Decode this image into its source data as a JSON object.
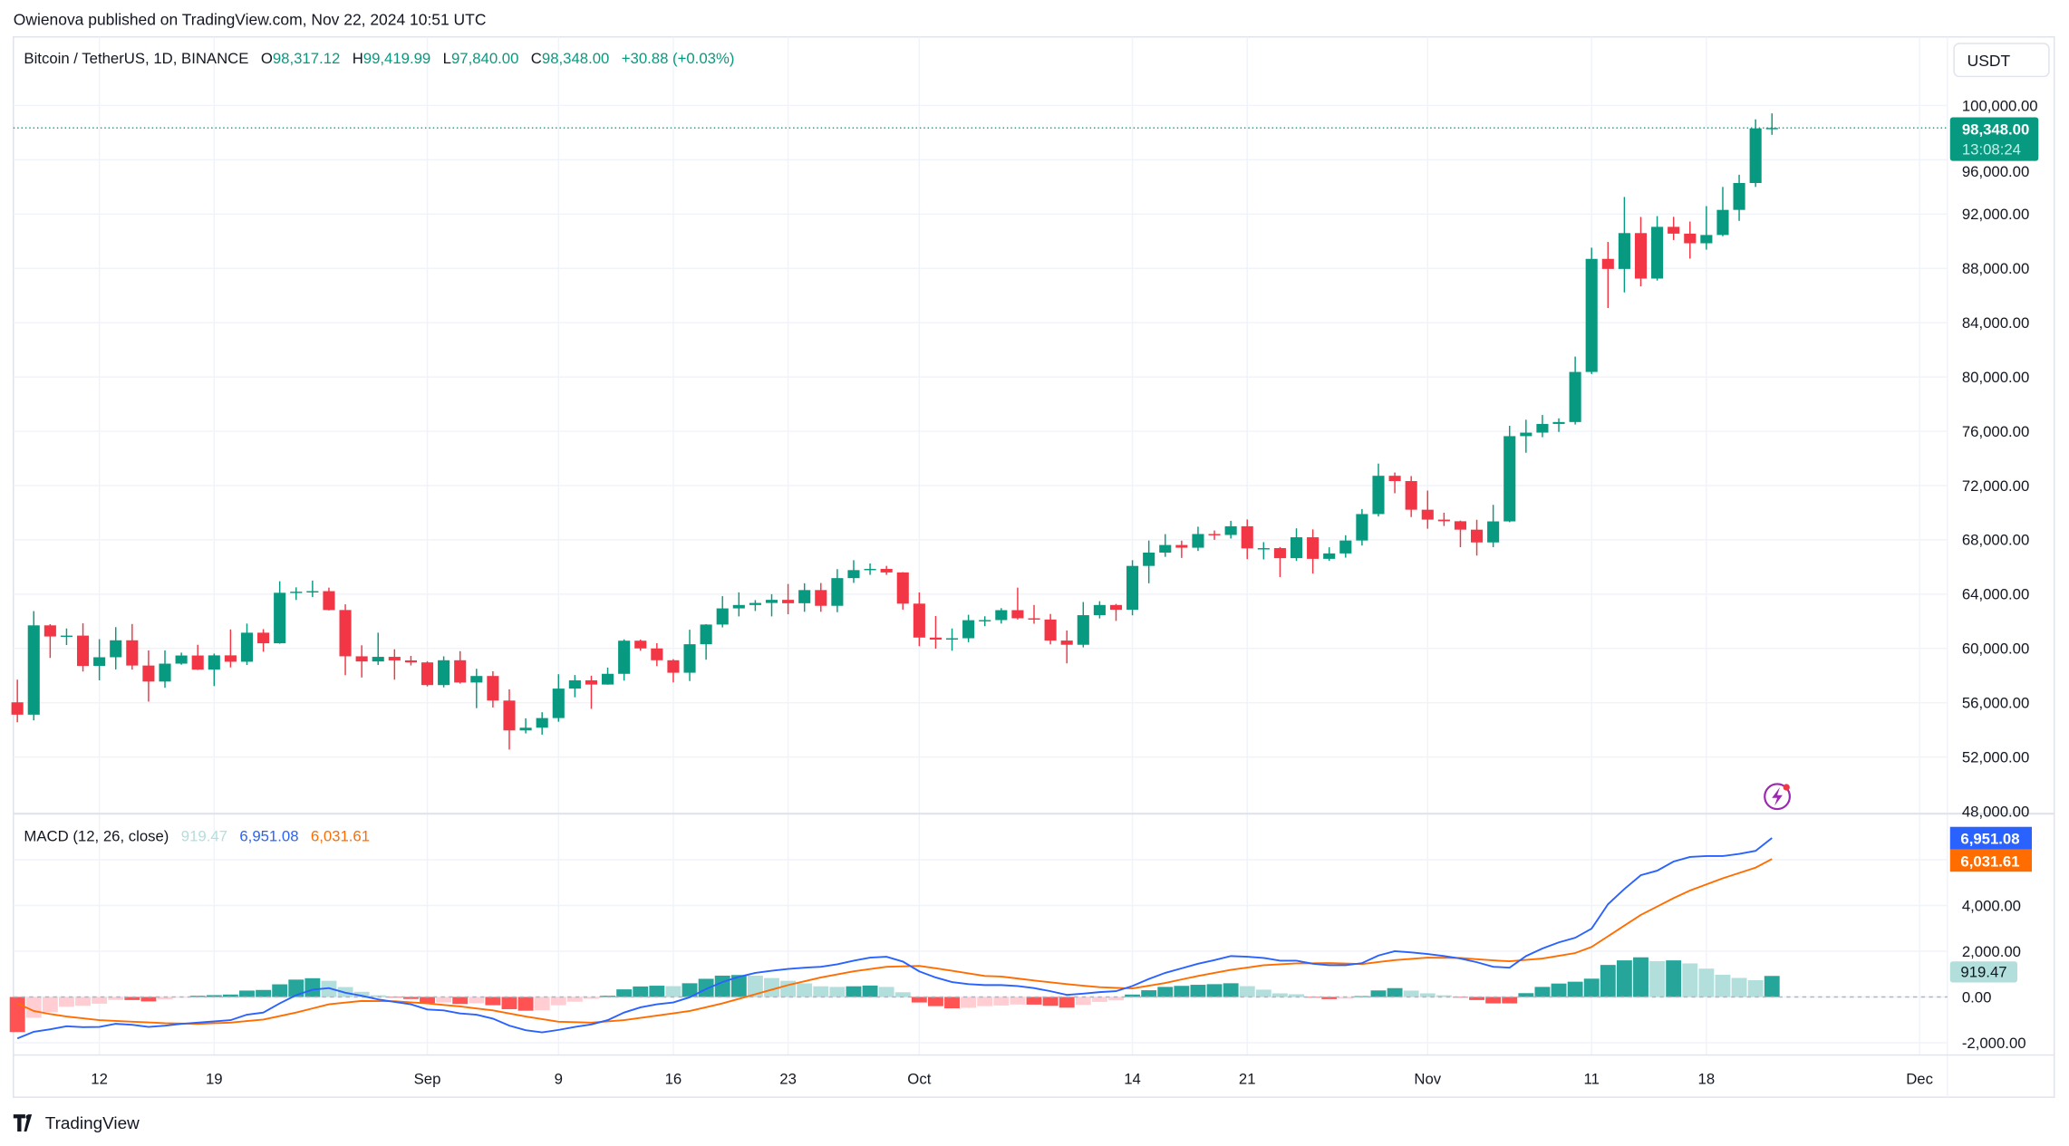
{
  "attribution": "Owienova published on TradingView.com, Nov 22, 2024 10:51 UTC",
  "legend": {
    "symbol": "Bitcoin / TetherUS, 1D, BINANCE",
    "o_label": "O",
    "o": "98,317.12",
    "h_label": "H",
    "h": "99,419.99",
    "l_label": "L",
    "l": "97,840.00",
    "c_label": "C",
    "c": "98,348.00",
    "change": "+30.88 (+0.03%)"
  },
  "currency_button": "USDT",
  "last_price": {
    "price": "98,348.00",
    "countdown": "13:08:24"
  },
  "macd_legend": {
    "title": "MACD (12, 26, close)",
    "histogram": "919.47",
    "macd": "6,951.08",
    "signal": "6,031.61"
  },
  "macd_labels": {
    "macd": "6,951.08",
    "signal": "6,031.61",
    "histogram": "919.47"
  },
  "branding": "TradingView",
  "colors": {
    "up": "#089981",
    "down": "#F23645",
    "macd": "#2962FF",
    "signal": "#FF6D00",
    "hist_up_strong": "#26A69A",
    "hist_up_weak": "#B2DFDB",
    "hist_down_strong": "#FF5252",
    "hist_down_weak": "#FFCDD2"
  },
  "chart_data": [
    {
      "type": "candlestick",
      "title": "Bitcoin / TetherUS, 1D, BINANCE",
      "ylim": [
        48000,
        100000
      ],
      "y_ticks": [
        "100,000.00",
        "96,000.00",
        "92,000.00",
        "88,000.00",
        "84,000.00",
        "80,000.00",
        "76,000.00",
        "72,000.00",
        "68,000.00",
        "64,000.00",
        "60,000.00",
        "56,000.00",
        "52,000.00",
        "48,000.00"
      ],
      "y_tick_values": [
        100000,
        96000,
        92000,
        88000,
        84000,
        80000,
        76000,
        72000,
        68000,
        64000,
        60000,
        56000,
        52000,
        48000
      ],
      "x_ticks": [
        {
          "label": "12",
          "date": "2024-08-12"
        },
        {
          "label": "19",
          "date": "2024-08-19"
        },
        {
          "label": "Sep",
          "date": "2024-09-01"
        },
        {
          "label": "9",
          "date": "2024-09-09"
        },
        {
          "label": "16",
          "date": "2024-09-16"
        },
        {
          "label": "23",
          "date": "2024-09-23"
        },
        {
          "label": "Oct",
          "date": "2024-10-01"
        },
        {
          "label": "14",
          "date": "2024-10-14"
        },
        {
          "label": "21",
          "date": "2024-10-21"
        },
        {
          "label": "Nov",
          "date": "2024-11-01"
        },
        {
          "label": "11",
          "date": "2024-11-11"
        },
        {
          "label": "18",
          "date": "2024-11-18"
        },
        {
          "label": "Dec",
          "date": "2024-12-01"
        }
      ],
      "grid": true,
      "candles_ohlc": [
        [
          "2024-08-07",
          56030,
          57700,
          54560,
          55120
        ],
        [
          "2024-08-08",
          55120,
          62750,
          54700,
          61700
        ],
        [
          "2024-08-09",
          61700,
          61790,
          59300,
          60880
        ],
        [
          "2024-08-10",
          60880,
          61470,
          60250,
          60945
        ],
        [
          "2024-08-11",
          60945,
          61850,
          58300,
          58710
        ],
        [
          "2024-08-12",
          58710,
          60680,
          57650,
          59350
        ],
        [
          "2024-08-13",
          59350,
          61570,
          58450,
          60600
        ],
        [
          "2024-08-14",
          60600,
          61800,
          58440,
          58740
        ],
        [
          "2024-08-15",
          58740,
          59850,
          56080,
          57560
        ],
        [
          "2024-08-16",
          57560,
          59850,
          57100,
          58880
        ],
        [
          "2024-08-17",
          58880,
          59690,
          58800,
          59480
        ],
        [
          "2024-08-18",
          59480,
          60270,
          58420,
          58440
        ],
        [
          "2024-08-19",
          58440,
          59620,
          57230,
          59490
        ],
        [
          "2024-08-20",
          59490,
          61400,
          58600,
          59020
        ],
        [
          "2024-08-21",
          59020,
          61830,
          58780,
          61160
        ],
        [
          "2024-08-22",
          61160,
          61420,
          59760,
          60380
        ],
        [
          "2024-08-23",
          60380,
          64950,
          60350,
          64100
        ],
        [
          "2024-08-24",
          64100,
          64500,
          63570,
          64180
        ],
        [
          "2024-08-25",
          64180,
          65000,
          63780,
          64220
        ],
        [
          "2024-08-26",
          64220,
          64480,
          62800,
          62830
        ],
        [
          "2024-08-27",
          62830,
          63250,
          58030,
          59420
        ],
        [
          "2024-08-28",
          59420,
          60230,
          57860,
          59040
        ],
        [
          "2024-08-29",
          59040,
          61160,
          58780,
          59380
        ],
        [
          "2024-08-30",
          59380,
          59940,
          57700,
          59120
        ],
        [
          "2024-08-31",
          59120,
          59450,
          58750,
          58970
        ],
        [
          "2024-09-01",
          58970,
          59060,
          57200,
          57300
        ],
        [
          "2024-09-02",
          57300,
          59420,
          57130,
          59130
        ],
        [
          "2024-09-03",
          59130,
          59800,
          57410,
          57490
        ],
        [
          "2024-09-04",
          57490,
          58500,
          55600,
          57970
        ],
        [
          "2024-09-05",
          57970,
          58320,
          55650,
          56160
        ],
        [
          "2024-09-06",
          56160,
          56990,
          52550,
          53960
        ],
        [
          "2024-09-07",
          53960,
          54850,
          53740,
          54160
        ],
        [
          "2024-09-08",
          54160,
          55300,
          53650,
          54870
        ],
        [
          "2024-09-09",
          54870,
          58100,
          54600,
          57040
        ],
        [
          "2024-09-10",
          57040,
          58040,
          56400,
          57650
        ],
        [
          "2024-09-11",
          57650,
          57990,
          55550,
          57340
        ],
        [
          "2024-09-12",
          57340,
          58590,
          57330,
          58130
        ],
        [
          "2024-09-13",
          58130,
          60670,
          57630,
          60570
        ],
        [
          "2024-09-14",
          60570,
          60650,
          59830,
          60000
        ],
        [
          "2024-09-15",
          60000,
          60390,
          58700,
          59130
        ],
        [
          "2024-09-16",
          59130,
          59210,
          57500,
          58210
        ],
        [
          "2024-09-17",
          58210,
          61380,
          57600,
          60310
        ],
        [
          "2024-09-18",
          60310,
          61790,
          59170,
          61760
        ],
        [
          "2024-09-19",
          61760,
          63850,
          61550,
          62950
        ],
        [
          "2024-09-20",
          62950,
          64130,
          62360,
          63200
        ],
        [
          "2024-09-21",
          63200,
          63560,
          62760,
          63350
        ],
        [
          "2024-09-22",
          63350,
          64000,
          62360,
          63580
        ],
        [
          "2024-09-23",
          63580,
          64750,
          62520,
          63330
        ],
        [
          "2024-09-24",
          63330,
          64800,
          62700,
          64300
        ],
        [
          "2024-09-25",
          64300,
          64820,
          62700,
          63140
        ],
        [
          "2024-09-26",
          63140,
          65840,
          62670,
          65180
        ],
        [
          "2024-09-27",
          65180,
          66500,
          64830,
          65770
        ],
        [
          "2024-09-28",
          65770,
          66260,
          65420,
          65860
        ],
        [
          "2024-09-29",
          65860,
          66080,
          65420,
          65600
        ],
        [
          "2024-09-30",
          65600,
          65620,
          62860,
          63300
        ],
        [
          "2024-10-01",
          63300,
          64130,
          60170,
          60800
        ],
        [
          "2024-10-02",
          60800,
          62390,
          59980,
          60650
        ],
        [
          "2024-10-03",
          60650,
          61470,
          59830,
          60750
        ],
        [
          "2024-10-04",
          60750,
          62480,
          60460,
          62080
        ],
        [
          "2024-10-05",
          62080,
          62370,
          61640,
          62090
        ],
        [
          "2024-10-06",
          62090,
          62970,
          61830,
          62820
        ],
        [
          "2024-10-07",
          62820,
          64480,
          62130,
          62220
        ],
        [
          "2024-10-08",
          62220,
          63200,
          61820,
          62130
        ],
        [
          "2024-10-09",
          62130,
          62540,
          60300,
          60580
        ],
        [
          "2024-10-10",
          60580,
          61320,
          58900,
          60270
        ],
        [
          "2024-10-11",
          60270,
          63420,
          60080,
          62450
        ],
        [
          "2024-10-12",
          62450,
          63480,
          62210,
          63200
        ],
        [
          "2024-10-13",
          63200,
          63280,
          62030,
          62850
        ],
        [
          "2024-10-14",
          62850,
          66500,
          62440,
          66080
        ],
        [
          "2024-10-15",
          66080,
          67950,
          64800,
          67060
        ],
        [
          "2024-10-16",
          67060,
          68420,
          66750,
          67620
        ],
        [
          "2024-10-17",
          67620,
          67940,
          66670,
          67420
        ],
        [
          "2024-10-18",
          67420,
          68970,
          67180,
          68430
        ],
        [
          "2024-10-19",
          68430,
          68690,
          68000,
          68360
        ],
        [
          "2024-10-20",
          68360,
          69400,
          68100,
          69000
        ],
        [
          "2024-10-21",
          69000,
          69500,
          66580,
          67370
        ],
        [
          "2024-10-22",
          67370,
          67830,
          66560,
          67390
        ],
        [
          "2024-10-23",
          67390,
          67470,
          65260,
          66650
        ],
        [
          "2024-10-24",
          66650,
          68850,
          66450,
          68190
        ],
        [
          "2024-10-25",
          68190,
          68770,
          65520,
          66600
        ],
        [
          "2024-10-26",
          66600,
          67450,
          66460,
          67000
        ],
        [
          "2024-10-27",
          67000,
          68340,
          66690,
          67950
        ],
        [
          "2024-10-28",
          67950,
          70270,
          67580,
          69900
        ],
        [
          "2024-10-29",
          69900,
          73620,
          69720,
          72720
        ],
        [
          "2024-10-30",
          72720,
          72960,
          71430,
          72330
        ],
        [
          "2024-10-31",
          72330,
          72700,
          69680,
          70220
        ],
        [
          "2024-11-01",
          70220,
          71630,
          68820,
          69490
        ],
        [
          "2024-11-02",
          69490,
          70000,
          69020,
          69370
        ],
        [
          "2024-11-03",
          69370,
          69420,
          67460,
          68750
        ],
        [
          "2024-11-04",
          68750,
          69480,
          66840,
          67810
        ],
        [
          "2024-11-05",
          67810,
          70580,
          67460,
          69360
        ],
        [
          "2024-11-06",
          69360,
          76400,
          69300,
          75640
        ],
        [
          "2024-11-07",
          75640,
          76850,
          74420,
          75900
        ],
        [
          "2024-11-08",
          75900,
          77200,
          75560,
          76540
        ],
        [
          "2024-11-09",
          76540,
          76950,
          75950,
          76680
        ],
        [
          "2024-11-10",
          76680,
          81500,
          76500,
          80370
        ],
        [
          "2024-11-11",
          80370,
          89530,
          80220,
          88700
        ],
        [
          "2024-11-12",
          88700,
          89950,
          85080,
          87960
        ],
        [
          "2024-11-13",
          87960,
          93265,
          86230,
          90600
        ],
        [
          "2024-11-14",
          90600,
          91790,
          86670,
          87250
        ],
        [
          "2024-11-15",
          87250,
          91850,
          87100,
          91060
        ],
        [
          "2024-11-16",
          91060,
          91800,
          90090,
          90560
        ],
        [
          "2024-11-17",
          90560,
          91450,
          88720,
          89850
        ],
        [
          "2024-11-18",
          89850,
          92590,
          89380,
          90460
        ],
        [
          "2024-11-19",
          90460,
          94000,
          90370,
          92310
        ],
        [
          "2024-11-20",
          92310,
          94900,
          91500,
          94290
        ],
        [
          "2024-11-21",
          94290,
          98980,
          94000,
          98317.12
        ],
        [
          "2024-11-22",
          98317.12,
          99419.99,
          97840,
          98348
        ]
      ],
      "last_price": 98348
    },
    {
      "type": "line+bar",
      "title": "MACD (12, 26, close)",
      "ylim": [
        -2600,
        8000
      ],
      "y_ticks": [
        "4,000.00",
        "2,000.00",
        "0.00",
        "-2,000.00"
      ],
      "y_tick_values": [
        4000,
        2000,
        0,
        -2000
      ],
      "series": [
        {
          "name": "MACD",
          "values": [
            -1813,
            -1520,
            -1413,
            -1280,
            -1320,
            -1307,
            -1173,
            -1213,
            -1307,
            -1253,
            -1173,
            -1120,
            -1067,
            -1013,
            -773,
            -680,
            -280,
            80,
            320,
            387,
            187,
            53,
            -107,
            -213,
            -320,
            -547,
            -587,
            -720,
            -773,
            -947,
            -1253,
            -1453,
            -1547,
            -1440,
            -1307,
            -1200,
            -1013,
            -680,
            -453,
            -320,
            -240,
            -13,
            347,
            653,
            880,
            1053,
            1147,
            1227,
            1280,
            1320,
            1427,
            1587,
            1720,
            1760,
            1547,
            1120,
            853,
            653,
            560,
            520,
            520,
            480,
            387,
            253,
            93,
            147,
            213,
            253,
            480,
            787,
            1053,
            1253,
            1453,
            1613,
            1787,
            1760,
            1707,
            1587,
            1587,
            1453,
            1387,
            1387,
            1480,
            1813,
            2000,
            1947,
            1880,
            1787,
            1680,
            1520,
            1320,
            1280,
            1787,
            2120,
            2387,
            2587,
            2987,
            4053,
            4720,
            5320,
            5520,
            5920,
            6120,
            6160,
            6160,
            6253,
            6387,
            6951.08
          ]
        },
        {
          "name": "Signal",
          "values": [
            -280,
            -613,
            -747,
            -853,
            -933,
            -1013,
            -1047,
            -1080,
            -1113,
            -1147,
            -1160,
            -1173,
            -1147,
            -1120,
            -1053,
            -987,
            -833,
            -680,
            -500,
            -320,
            -247,
            -173,
            -180,
            -187,
            -233,
            -280,
            -347,
            -413,
            -500,
            -587,
            -720,
            -853,
            -967,
            -1080,
            -1100,
            -1120,
            -1067,
            -1013,
            -913,
            -813,
            -713,
            -613,
            -447,
            -280,
            -80,
            120,
            320,
            520,
            687,
            853,
            987,
            1120,
            1220,
            1320,
            1340,
            1360,
            1253,
            1147,
            1033,
            920,
            893,
            807,
            720,
            640,
            560,
            493,
            427,
            400,
            373,
            493,
            613,
            767,
            920,
            1053,
            1187,
            1287,
            1387,
            1427,
            1467,
            1473,
            1480,
            1460,
            1440,
            1527,
            1613,
            1667,
            1720,
            1713,
            1707,
            1653,
            1600,
            1560,
            1620,
            1680,
            1800,
            1920,
            2187,
            2653,
            3120,
            3587,
            3953,
            4320,
            4653,
            4920,
            5187,
            5420,
            5653,
            6031.61
          ]
        }
      ]
    }
  ]
}
